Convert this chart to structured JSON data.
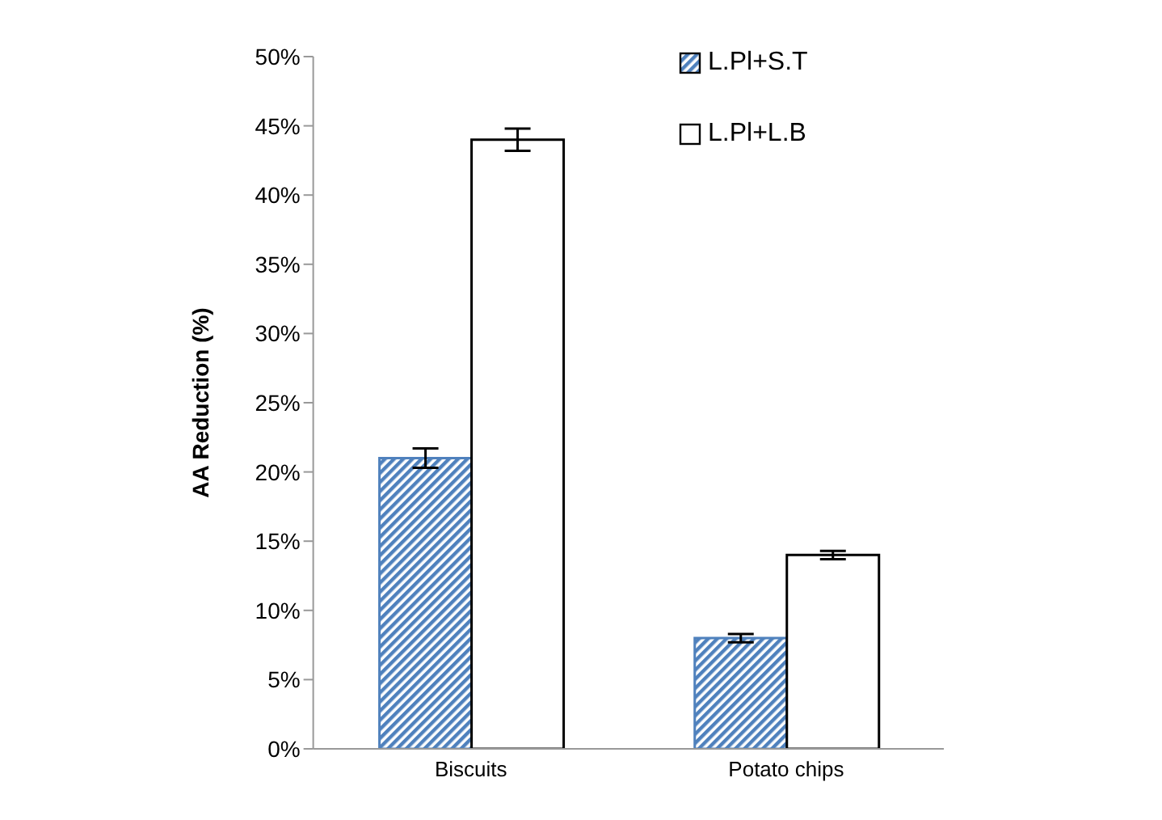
{
  "chart_data": {
    "type": "bar",
    "ylabel": "AA Reduction (%)",
    "categories": [
      "Biscuits",
      "Potato chips"
    ],
    "series": [
      {
        "name": "L.Pl+S.T",
        "color": "#4f81bd",
        "values": [
          21,
          8
        ],
        "errors": [
          0.7,
          0.3
        ]
      },
      {
        "name": "L.Pl+L.B",
        "color": "#ffffff",
        "values": [
          44,
          14
        ],
        "errors": [
          0.8,
          0.3
        ]
      }
    ],
    "ylim": [
      0,
      50
    ],
    "yticks": [
      {
        "value": 0,
        "label": "0%"
      },
      {
        "value": 5,
        "label": "5%"
      },
      {
        "value": 10,
        "label": "10%"
      },
      {
        "value": 15,
        "label": "15%"
      },
      {
        "value": 20,
        "label": "20%"
      },
      {
        "value": 25,
        "label": "25%"
      },
      {
        "value": 30,
        "label": "30%"
      },
      {
        "value": 35,
        "label": "35%"
      },
      {
        "value": 40,
        "label": "40%"
      },
      {
        "value": 45,
        "label": "45%"
      },
      {
        "value": 50,
        "label": "50%"
      }
    ],
    "grid": false,
    "legend": "top right"
  }
}
